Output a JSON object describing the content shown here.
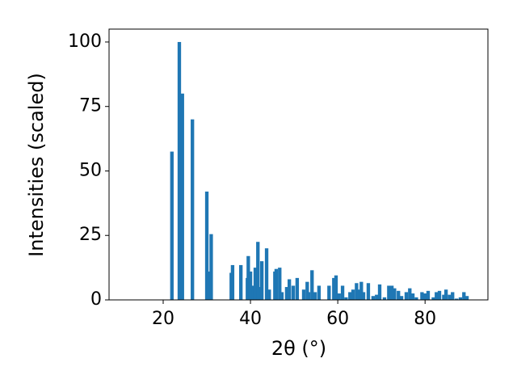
{
  "chart_data": {
    "type": "bar",
    "xlabel": "2θ (°)",
    "ylabel": "Intensities (scaled)",
    "color": "#1f77b4",
    "x": [
      22.0,
      23.7,
      24.4,
      26.7,
      30.0,
      30.4,
      31.0,
      35.6,
      35.9,
      37.8,
      39.3,
      39.5,
      40.0,
      40.7,
      41.1,
      41.7,
      42.2,
      42.6,
      43.7,
      44.3,
      45.6,
      45.9,
      46.7,
      47.2,
      48.3,
      48.9,
      49.8,
      50.7,
      52.2,
      53.0,
      53.3,
      54.1,
      54.8,
      55.7,
      58.0,
      59.1,
      59.6,
      60.3,
      61.1,
      61.9,
      62.8,
      63.5,
      64.3,
      64.8,
      65.4,
      65.9,
      67.0,
      68.1,
      68.9,
      69.6,
      70.7,
      71.7,
      72.4,
      73.0,
      73.9,
      74.6,
      75.7,
      76.5,
      77.2,
      78.0,
      79.3,
      80.0,
      80.7,
      81.9,
      82.6,
      83.3,
      84.3,
      84.8,
      85.6,
      86.3,
      87.2,
      88.1,
      88.9,
      89.6
    ],
    "values": [
      57.5,
      100,
      80,
      70,
      42,
      11,
      25.5,
      10.5,
      13.5,
      13.5,
      8.5,
      17,
      11,
      5.5,
      12.5,
      22.5,
      5,
      15,
      20,
      4,
      11,
      12,
      12.5,
      3,
      5,
      8,
      5.5,
      8.5,
      4,
      7,
      3,
      11.5,
      3,
      5.5,
      5.5,
      8.5,
      9.5,
      2.5,
      5.5,
      1,
      3,
      4,
      6.5,
      4,
      7,
      3,
      6.5,
      1.5,
      2,
      6,
      1,
      5.5,
      5.5,
      4.5,
      3.5,
      1.5,
      3,
      4.5,
      2.5,
      1,
      3,
      2.5,
      3.5,
      1,
      3,
      3.5,
      2,
      4,
      2,
      3,
      0.5,
      1,
      3,
      1.5
    ],
    "xlim": [
      7.6,
      94.4
    ],
    "xticks": [
      20,
      40,
      60,
      80
    ],
    "ylim": [
      0,
      105
    ],
    "yticks": [
      0,
      25,
      50,
      75,
      100
    ]
  }
}
